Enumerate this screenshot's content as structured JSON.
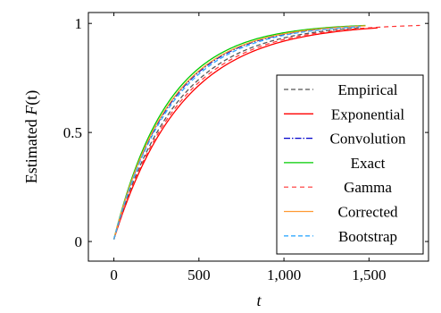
{
  "chart_data": {
    "type": "line",
    "xlabel": "t",
    "ylabel_prefix": "Estimated ",
    "ylabel_func": "F",
    "ylabel_arg": "(t)",
    "xlim": [
      -150,
      1850
    ],
    "ylim": [
      -0.09,
      1.05
    ],
    "xticks": [
      {
        "value": 0,
        "label": "0"
      },
      {
        "value": 500,
        "label": "500"
      },
      {
        "value": 1000,
        "label": "1,000"
      },
      {
        "value": 1500,
        "label": "1,500"
      }
    ],
    "yticks": [
      {
        "value": 0,
        "label": "0"
      },
      {
        "value": 0.5,
        "label": "0.5"
      },
      {
        "value": 1,
        "label": "1"
      }
    ],
    "legend_position": "lower-right",
    "series": [
      {
        "name": "Empirical",
        "color": "#555555",
        "dash": "5,3",
        "width": 1.3,
        "x_start": 0,
        "x_end": 1450,
        "scale": 370
      },
      {
        "name": "Exponential",
        "color": "#ff0000",
        "dash": "",
        "width": 1.3,
        "x_start": 0,
        "x_end": 1550,
        "scale": 400
      },
      {
        "name": "Convolution",
        "color": "#0000cc",
        "dash": "7,2,1.5,2",
        "width": 1.3,
        "x_start": 0,
        "x_end": 1450,
        "scale": 335
      },
      {
        "name": "Exact",
        "color": "#00cc00",
        "dash": "",
        "width": 1.3,
        "x_start": 0,
        "x_end": 1480,
        "scale": 318
      },
      {
        "name": "Gamma",
        "color": "#ff3333",
        "dash": "5,4",
        "width": 1.2,
        "x_start": 0,
        "x_end": 1800,
        "scale": 385
      },
      {
        "name": "Corrected",
        "color": "#ff9933",
        "dash": "",
        "width": 1.3,
        "x_start": 0,
        "x_end": 1480,
        "scale": 330
      },
      {
        "name": "Bootstrap",
        "color": "#33aaff",
        "dash": "5,3",
        "width": 1.3,
        "x_start": 0,
        "x_end": 1450,
        "scale": 345
      }
    ]
  }
}
